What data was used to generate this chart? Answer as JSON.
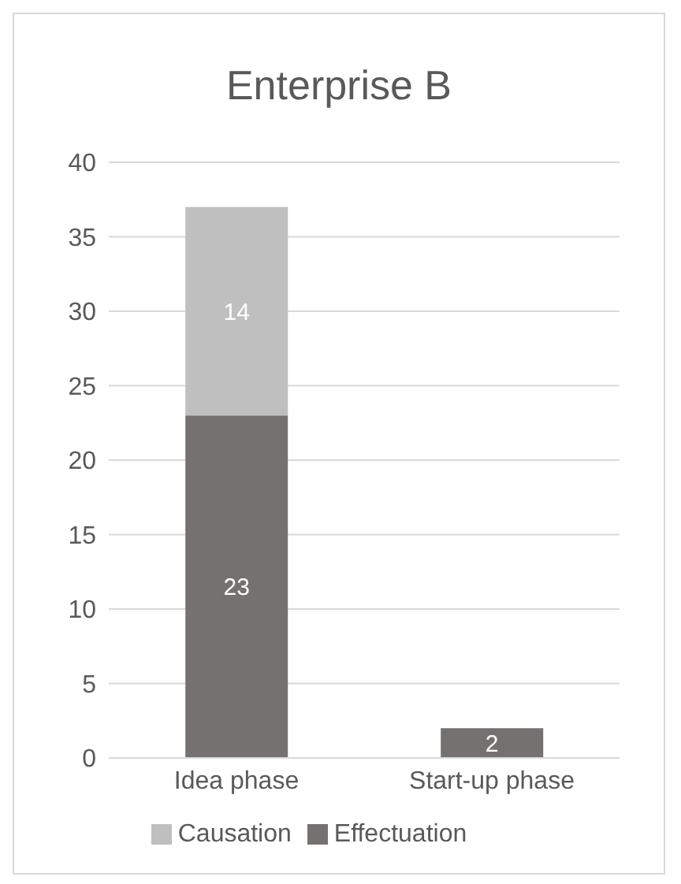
{
  "chart_data": {
    "type": "bar",
    "title": "Enterprise B",
    "categories": [
      "Idea phase",
      "Start-up phase"
    ],
    "stacked": true,
    "series": [
      {
        "name": "Effectuation",
        "color": "#767171",
        "values": [
          23,
          2
        ]
      },
      {
        "name": "Causation",
        "color": "#bfbfbf",
        "values": [
          14,
          null
        ]
      }
    ],
    "ylim": [
      0,
      40
    ],
    "yticks": [
      0,
      5,
      10,
      15,
      20,
      25,
      30,
      35,
      40
    ],
    "grid": "y",
    "legend": "bottom",
    "data_labels": true
  }
}
